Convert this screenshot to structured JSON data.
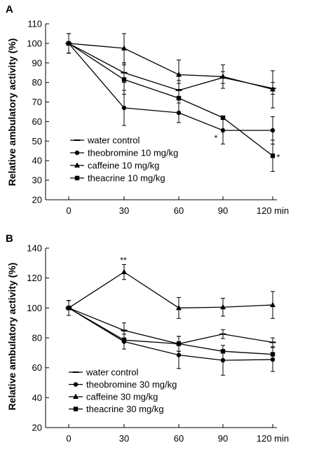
{
  "chart_data": [
    {
      "panel": "A",
      "type": "line",
      "ylabel": "Relative ambulatory activity (%)",
      "x": [
        0,
        30,
        60,
        90,
        120
      ],
      "x_tick_labels": [
        "0",
        "30",
        "60",
        "90",
        "120 min"
      ],
      "ylim": [
        20,
        110
      ],
      "yticks": [
        20,
        30,
        40,
        50,
        60,
        70,
        80,
        90,
        100,
        110
      ],
      "grid": false,
      "legend_position": "bottom-left",
      "series": [
        {
          "name": "water control",
          "marker": "dash",
          "values": [
            100,
            85,
            76,
            82.5,
            77
          ],
          "err": [
            5,
            5,
            5,
            3,
            3
          ]
        },
        {
          "name": "theobromine 10 mg/kg",
          "marker": "circle",
          "values": [
            100,
            67,
            64.5,
            55.5,
            55.5
          ],
          "err": [
            5,
            9,
            5,
            7,
            7
          ]
        },
        {
          "name": "caffeine 10 mg/kg",
          "marker": "triangle",
          "values": [
            100,
            97.5,
            84,
            83,
            76.5
          ],
          "err": [
            5,
            7.5,
            7.5,
            6,
            9.5
          ]
        },
        {
          "name": "theacrine 10 mg/kg",
          "marker": "square",
          "values": [
            100,
            81.5,
            72,
            62,
            42.5
          ],
          "err": [
            5,
            7.5,
            7.5,
            0,
            8
          ]
        }
      ],
      "annotations": [
        {
          "text": "*",
          "x": 90,
          "y": 52
        },
        {
          "text": "*",
          "x": 120,
          "y": 42
        }
      ]
    },
    {
      "panel": "B",
      "type": "line",
      "ylabel": "Relative ambulatory activity (%)",
      "x": [
        0,
        30,
        60,
        90,
        120
      ],
      "x_tick_labels": [
        "0",
        "30",
        "60",
        "90",
        "120 min"
      ],
      "ylim": [
        20,
        140
      ],
      "yticks": [
        20,
        40,
        60,
        80,
        100,
        120,
        140
      ],
      "grid": false,
      "legend_position": "bottom-left",
      "series": [
        {
          "name": "water control",
          "marker": "dash",
          "values": [
            100,
            85,
            76,
            82.5,
            77
          ],
          "err": [
            5,
            5,
            5,
            3,
            3
          ]
        },
        {
          "name": "theobromine 30 mg/kg",
          "marker": "circle",
          "values": [
            100,
            77.5,
            68.5,
            65,
            65.5
          ],
          "err": [
            5,
            5,
            9,
            10,
            8
          ]
        },
        {
          "name": "caffeine 30 mg/kg",
          "marker": "triangle",
          "values": [
            100,
            124,
            100,
            100.5,
            102
          ],
          "err": [
            5,
            5,
            7,
            6,
            9
          ]
        },
        {
          "name": "theacrine 30 mg/kg",
          "marker": "square",
          "values": [
            100,
            78.5,
            76,
            71,
            69
          ],
          "err": [
            5,
            6,
            5,
            0,
            0
          ]
        }
      ],
      "annotations": [
        {
          "text": "**",
          "x": 30,
          "y": 130
        }
      ]
    }
  ]
}
